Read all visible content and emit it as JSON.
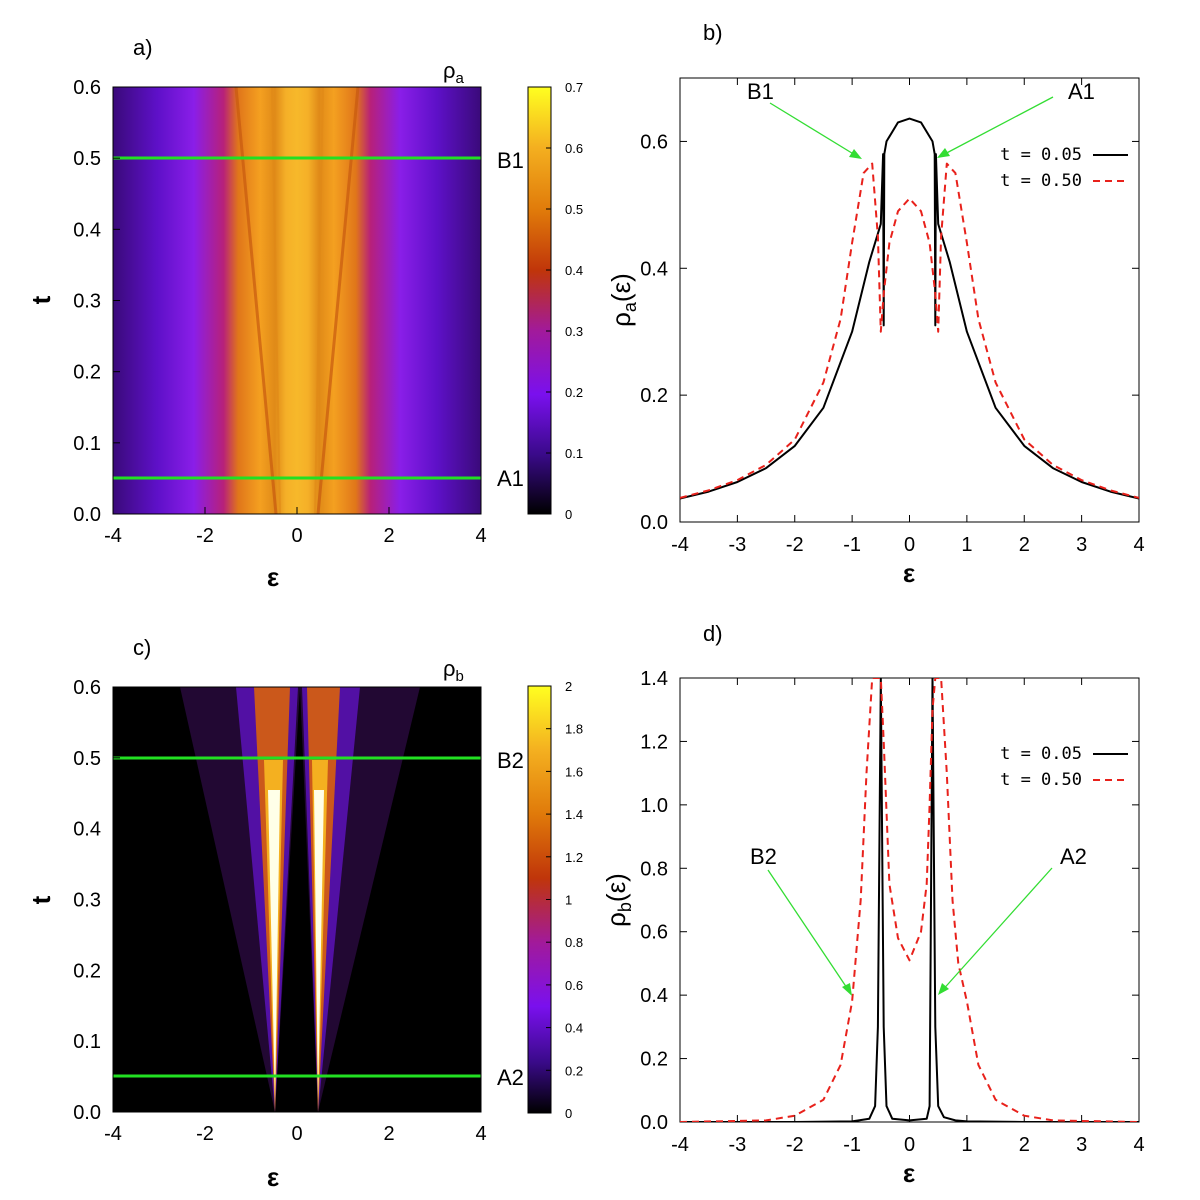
{
  "panels": [
    {
      "id": "a",
      "label": "a)",
      "kind": "heatmap",
      "xlabel": "ε",
      "ylabel": "t",
      "xticks": [
        "-4",
        "-2",
        "0",
        "2",
        "4"
      ],
      "yticks": [
        "0.0",
        "0.1",
        "0.2",
        "0.3",
        "0.4",
        "0.5",
        "0.6"
      ],
      "colorbar_title": "ρ",
      "colorbar_title_sub": "a",
      "colorbar_ticks": [
        "0",
        "0.1",
        "0.2",
        "0.3",
        "0.4",
        "0.5",
        "0.6",
        "0.7"
      ],
      "line_labels": [
        "B1",
        "A1"
      ]
    },
    {
      "id": "b",
      "label": "b)",
      "kind": "line",
      "xlabel": "ε",
      "ylabel_main": "ρ",
      "ylabel_sub": "a",
      "ylabel_tail": "(ε)",
      "xticks": [
        "-4",
        "-3",
        "-2",
        "-1",
        "0",
        "1",
        "2",
        "3",
        "4"
      ],
      "yticks": [
        "0.0",
        "0.2",
        "0.4",
        "0.6"
      ],
      "annotations": [
        "B1",
        "A1"
      ],
      "legend": [
        "t = 0.05",
        "t = 0.50"
      ]
    },
    {
      "id": "c",
      "label": "c)",
      "kind": "heatmap",
      "xlabel": "ε",
      "ylabel": "t",
      "xticks": [
        "-4",
        "-2",
        "0",
        "2",
        "4"
      ],
      "yticks": [
        "0.0",
        "0.1",
        "0.2",
        "0.3",
        "0.4",
        "0.5",
        "0.6"
      ],
      "colorbar_title": "ρ",
      "colorbar_title_sub": "b",
      "colorbar_ticks": [
        "0",
        "0.2",
        "0.4",
        "0.6",
        "0.8",
        "1",
        "1.2",
        "1.4",
        "1.6",
        "1.8",
        "2"
      ],
      "line_labels": [
        "B2",
        "A2"
      ]
    },
    {
      "id": "d",
      "label": "d)",
      "kind": "line",
      "xlabel": "ε",
      "ylabel_main": "ρ",
      "ylabel_sub": "b",
      "ylabel_tail": "(ε)",
      "xticks": [
        "-4",
        "-3",
        "-2",
        "-1",
        "0",
        "1",
        "2",
        "3",
        "4"
      ],
      "yticks": [
        "0.0",
        "0.2",
        "0.4",
        "0.6",
        "0.8",
        "1.0",
        "1.2",
        "1.4"
      ],
      "annotations": [
        "B2",
        "A2"
      ],
      "legend": [
        "t = 0.05",
        "t = 0.50"
      ]
    }
  ],
  "colors": {
    "marker_line": "#22e022",
    "arrow": "#33dd33",
    "series_t005": "#000000",
    "series_t050": "#e8211b"
  },
  "chart_data": [
    {
      "type": "heatmap",
      "title": "",
      "xlabel": "ε",
      "ylabel": "t",
      "xlim": [
        -4,
        4
      ],
      "ylim": [
        0,
        0.6
      ],
      "colorbar_label": "ρa",
      "colorbar_range": [
        0,
        0.7
      ],
      "horizontal_lines": [
        {
          "t": 0.5,
          "label": "B1"
        },
        {
          "t": 0.05,
          "label": "A1"
        }
      ],
      "features": "Broad central peak (~0.6) near ε = 0 that splits into two bands at ε ≈ ±0.8 as t grows, with narrow dips at ε ≈ ±0.45."
    },
    {
      "type": "line",
      "title": "",
      "xlabel": "ε",
      "ylabel": "ρa(ε)",
      "xlim": [
        -4,
        4
      ],
      "ylim": [
        0,
        0.7
      ],
      "series": [
        {
          "name": "t = 0.05",
          "x": [
            -4,
            -3.5,
            -3,
            -2.5,
            -2,
            -1.5,
            -1,
            -0.7,
            -0.5,
            -0.46,
            -0.45,
            -0.44,
            -0.4,
            -0.2,
            0,
            0.2,
            0.4,
            0.44,
            0.45,
            0.46,
            0.5,
            0.7,
            1,
            1.5,
            2,
            2.5,
            3,
            3.5,
            4
          ],
          "y": [
            0.037,
            0.048,
            0.063,
            0.085,
            0.12,
            0.18,
            0.3,
            0.41,
            0.47,
            0.58,
            0.31,
            0.58,
            0.6,
            0.63,
            0.636,
            0.63,
            0.6,
            0.58,
            0.31,
            0.58,
            0.47,
            0.41,
            0.3,
            0.18,
            0.12,
            0.085,
            0.063,
            0.048,
            0.037
          ]
        },
        {
          "name": "t = 0.50",
          "x": [
            -4,
            -3.5,
            -3,
            -2.5,
            -2,
            -1.5,
            -1.2,
            -1,
            -0.8,
            -0.65,
            -0.55,
            -0.5,
            -0.45,
            -0.35,
            -0.2,
            0,
            0.2,
            0.35,
            0.45,
            0.5,
            0.55,
            0.65,
            0.8,
            1,
            1.2,
            1.5,
            2,
            2.5,
            3,
            3.5,
            4
          ],
          "y": [
            0.038,
            0.05,
            0.066,
            0.09,
            0.13,
            0.22,
            0.32,
            0.44,
            0.55,
            0.565,
            0.45,
            0.3,
            0.36,
            0.44,
            0.49,
            0.51,
            0.49,
            0.44,
            0.36,
            0.3,
            0.45,
            0.565,
            0.55,
            0.44,
            0.32,
            0.22,
            0.13,
            0.09,
            0.066,
            0.05,
            0.038
          ]
        }
      ],
      "annotations": [
        {
          "text": "B1",
          "points_to": [
            -0.75,
            0.575
          ]
        },
        {
          "text": "A1",
          "points_to": [
            0.45,
            0.575
          ]
        }
      ]
    },
    {
      "type": "heatmap",
      "title": "",
      "xlabel": "ε",
      "ylabel": "t",
      "xlim": [
        -4,
        4
      ],
      "ylim": [
        0,
        0.6
      ],
      "colorbar_label": "ρb",
      "colorbar_range": [
        0,
        2
      ],
      "horizontal_lines": [
        {
          "t": 0.5,
          "label": "B2"
        },
        {
          "t": 0.05,
          "label": "A2"
        }
      ],
      "features": "Two narrow bright bands at ε ≈ -0.5 and ε ≈ +0.4 that broaden and dim with increasing t."
    },
    {
      "type": "line",
      "title": "",
      "xlabel": "ε",
      "ylabel": "ρb(ε)",
      "xlim": [
        -4,
        4
      ],
      "ylim": [
        0,
        1.4
      ],
      "series": [
        {
          "name": "t = 0.05",
          "x": [
            -4,
            -2,
            -1,
            -0.7,
            -0.6,
            -0.55,
            -0.5,
            -0.45,
            -0.4,
            -0.3,
            0,
            0.3,
            0.35,
            0.4,
            0.45,
            0.5,
            0.6,
            0.8,
            1,
            2,
            4
          ],
          "y": [
            0,
            0,
            0.002,
            0.01,
            0.05,
            0.3,
            1.4,
            0.3,
            0.05,
            0.01,
            0.005,
            0.01,
            0.05,
            1.4,
            0.3,
            0.05,
            0.015,
            0.005,
            0.002,
            0,
            0
          ]
        },
        {
          "name": "t = 0.50",
          "x": [
            -4,
            -2.5,
            -2,
            -1.5,
            -1.2,
            -1,
            -0.85,
            -0.75,
            -0.65,
            -0.55,
            -0.5,
            -0.45,
            -0.35,
            -0.2,
            0,
            0.2,
            0.3,
            0.35,
            0.4,
            0.45,
            0.55,
            0.65,
            0.75,
            0.85,
            1,
            1.2,
            1.5,
            2,
            2.5,
            4
          ],
          "y": [
            0,
            0.005,
            0.02,
            0.07,
            0.18,
            0.38,
            0.7,
            1.1,
            1.4,
            1.4,
            1.4,
            1.2,
            0.75,
            0.58,
            0.51,
            0.6,
            0.75,
            1.0,
            1.3,
            1.4,
            1.4,
            1.1,
            0.7,
            0.5,
            0.38,
            0.18,
            0.07,
            0.02,
            0.005,
            0
          ]
        }
      ],
      "annotations": [
        {
          "text": "B2",
          "points_to": [
            -1.0,
            0.4
          ]
        },
        {
          "text": "A2",
          "points_to": [
            0.5,
            0.4
          ]
        }
      ]
    }
  ]
}
